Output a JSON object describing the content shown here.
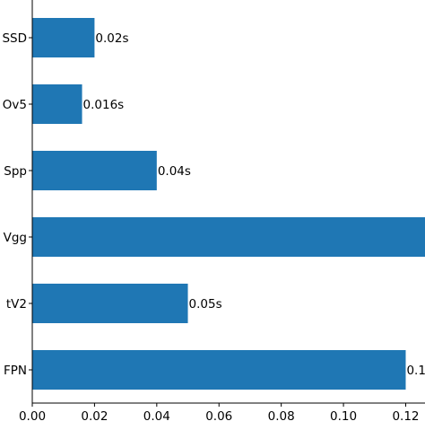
{
  "chart_data": {
    "type": "bar",
    "orientation": "horizontal",
    "categories": [
      "SSD",
      "Ov5",
      "Spp",
      "Vgg",
      "tV2",
      "FPN"
    ],
    "values": [
      0.02,
      0.016,
      0.04,
      0.13,
      0.05,
      0.12
    ],
    "data_labels": [
      "0.02s",
      "0.016s",
      "0.04s",
      "",
      "0.05s",
      "0.1"
    ],
    "xticks": [
      "0.00",
      "0.02",
      "0.04",
      "0.06",
      "0.08",
      "0.10",
      "0.12"
    ],
    "xtick_values": [
      0.0,
      0.02,
      0.04,
      0.06,
      0.08,
      0.1,
      0.12
    ],
    "xlim": [
      0.0,
      0.1262
    ],
    "bar_color": "#1f77b4",
    "grid": false,
    "title": "",
    "xlabel": "",
    "ylabel": ""
  }
}
